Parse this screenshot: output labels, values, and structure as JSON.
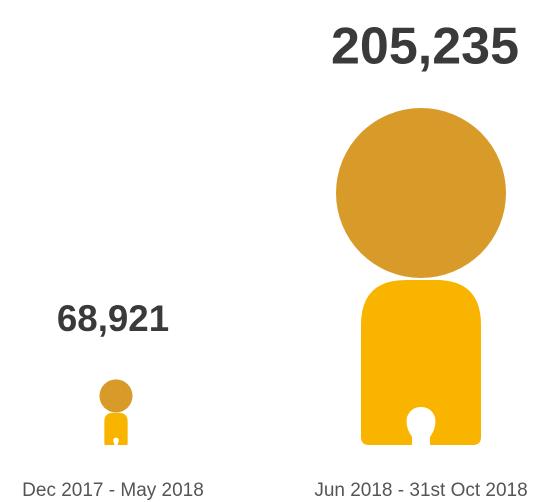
{
  "chart_data": {
    "type": "pictogram",
    "categories": [
      "Dec 2017 - May 2018",
      "Jun 2018 - 31st Oct 2018"
    ],
    "values": [
      68921,
      205235
    ],
    "value_labels": [
      "68,921",
      "205,235"
    ],
    "head_color": "#d89b2a",
    "body_color": "#f9b400"
  }
}
